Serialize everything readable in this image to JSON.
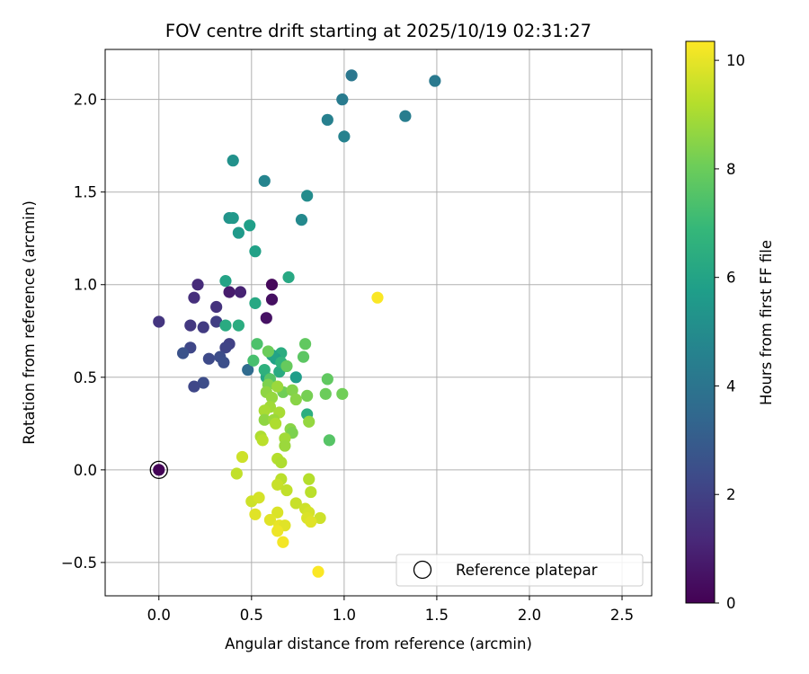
{
  "chart_data": {
    "type": "scatter",
    "title": "FOV centre drift starting at 2025/10/19 02:31:27",
    "xlabel": "Angular distance from reference (arcmin)",
    "ylabel": "Rotation from reference (arcmin)",
    "xlim": [
      -0.29,
      2.66
    ],
    "ylim": [
      -0.68,
      2.27
    ],
    "xticks": [
      0.0,
      0.5,
      1.0,
      1.5,
      2.0,
      2.5
    ],
    "xtick_labels": [
      "0.0",
      "0.5",
      "1.0",
      "1.5",
      "2.0",
      "2.5"
    ],
    "yticks": [
      -0.5,
      0.0,
      0.5,
      1.0,
      1.5,
      2.0
    ],
    "ytick_labels": [
      "−0.5",
      "0.0",
      "0.5",
      "1.0",
      "1.5",
      "2.0"
    ],
    "grid": true,
    "colorbar": {
      "label": "Hours from first FF file",
      "colormap": "viridis",
      "range": [
        0,
        10.35
      ],
      "ticks": [
        0,
        2,
        4,
        6,
        8,
        10
      ],
      "tick_labels": [
        "0",
        "2",
        "4",
        "6",
        "8",
        "10"
      ]
    },
    "legend": {
      "position": "bottom-right",
      "entries": [
        {
          "label": "Reference platepar",
          "marker": "open-circle"
        }
      ]
    },
    "reference_point": {
      "x": 0.0,
      "y": 0.0,
      "hours": 0.1
    },
    "points": [
      {
        "x": 0.0,
        "y": 0.0,
        "h": 0.1
      },
      {
        "x": 0.61,
        "y": 1.0,
        "h": 0.2
      },
      {
        "x": 0.61,
        "y": 0.92,
        "h": 0.4
      },
      {
        "x": 0.58,
        "y": 0.82,
        "h": 0.5
      },
      {
        "x": 0.38,
        "y": 0.96,
        "h": 0.8
      },
      {
        "x": 0.44,
        "y": 0.96,
        "h": 1.0
      },
      {
        "x": 0.21,
        "y": 1.0,
        "h": 1.3
      },
      {
        "x": 0.19,
        "y": 0.93,
        "h": 1.4
      },
      {
        "x": 0.31,
        "y": 0.88,
        "h": 1.5
      },
      {
        "x": 0.0,
        "y": 0.8,
        "h": 1.6
      },
      {
        "x": 0.17,
        "y": 0.78,
        "h": 1.7
      },
      {
        "x": 0.24,
        "y": 0.77,
        "h": 1.8
      },
      {
        "x": 0.31,
        "y": 0.8,
        "h": 1.9
      },
      {
        "x": 0.38,
        "y": 0.68,
        "h": 2.0
      },
      {
        "x": 0.36,
        "y": 0.66,
        "h": 2.1
      },
      {
        "x": 0.17,
        "y": 0.66,
        "h": 2.2
      },
      {
        "x": 0.13,
        "y": 0.63,
        "h": 2.6
      },
      {
        "x": 0.27,
        "y": 0.6,
        "h": 2.3
      },
      {
        "x": 0.33,
        "y": 0.61,
        "h": 2.4
      },
      {
        "x": 0.35,
        "y": 0.58,
        "h": 2.5
      },
      {
        "x": 0.24,
        "y": 0.47,
        "h": 2.4
      },
      {
        "x": 0.19,
        "y": 0.45,
        "h": 2.2
      },
      {
        "x": 0.48,
        "y": 0.54,
        "h": 3.6
      },
      {
        "x": 0.99,
        "y": 2.0,
        "h": 4.3
      },
      {
        "x": 1.04,
        "y": 2.13,
        "h": 4.1
      },
      {
        "x": 1.49,
        "y": 2.1,
        "h": 4.2
      },
      {
        "x": 1.33,
        "y": 1.91,
        "h": 4.4
      },
      {
        "x": 0.91,
        "y": 1.89,
        "h": 4.5
      },
      {
        "x": 1.0,
        "y": 1.8,
        "h": 4.6
      },
      {
        "x": 0.57,
        "y": 1.56,
        "h": 4.7
      },
      {
        "x": 0.4,
        "y": 1.67,
        "h": 5.2
      },
      {
        "x": 0.8,
        "y": 1.48,
        "h": 5.0
      },
      {
        "x": 0.77,
        "y": 1.35,
        "h": 4.9
      },
      {
        "x": 0.38,
        "y": 1.36,
        "h": 5.3
      },
      {
        "x": 0.4,
        "y": 1.36,
        "h": 5.5
      },
      {
        "x": 0.49,
        "y": 1.32,
        "h": 5.8
      },
      {
        "x": 0.43,
        "y": 1.28,
        "h": 5.6
      },
      {
        "x": 0.52,
        "y": 1.18,
        "h": 5.9
      },
      {
        "x": 0.7,
        "y": 1.04,
        "h": 6.2
      },
      {
        "x": 0.36,
        "y": 1.02,
        "h": 6.0
      },
      {
        "x": 0.52,
        "y": 0.9,
        "h": 6.2
      },
      {
        "x": 0.36,
        "y": 0.78,
        "h": 6.3
      },
      {
        "x": 0.43,
        "y": 0.78,
        "h": 6.4
      },
      {
        "x": 0.66,
        "y": 0.63,
        "h": 6.4
      },
      {
        "x": 0.63,
        "y": 0.6,
        "h": 5.9
      },
      {
        "x": 0.61,
        "y": 0.62,
        "h": 6.0
      },
      {
        "x": 0.74,
        "y": 0.5,
        "h": 5.7
      },
      {
        "x": 0.58,
        "y": 0.5,
        "h": 6.1
      },
      {
        "x": 0.57,
        "y": 0.54,
        "h": 6.6
      },
      {
        "x": 0.65,
        "y": 0.53,
        "h": 6.3
      },
      {
        "x": 0.66,
        "y": 0.58,
        "h": 6.7
      },
      {
        "x": 0.8,
        "y": 0.3,
        "h": 6.5
      },
      {
        "x": 0.53,
        "y": 0.68,
        "h": 7.4
      },
      {
        "x": 0.51,
        "y": 0.59,
        "h": 7.3
      },
      {
        "x": 0.59,
        "y": 0.64,
        "h": 8.0
      },
      {
        "x": 0.6,
        "y": 0.49,
        "h": 7.6
      },
      {
        "x": 0.79,
        "y": 0.68,
        "h": 7.8
      },
      {
        "x": 0.78,
        "y": 0.61,
        "h": 7.7
      },
      {
        "x": 0.69,
        "y": 0.56,
        "h": 7.9
      },
      {
        "x": 0.91,
        "y": 0.49,
        "h": 7.8
      },
      {
        "x": 0.9,
        "y": 0.41,
        "h": 8.0
      },
      {
        "x": 0.99,
        "y": 0.41,
        "h": 8.1
      },
      {
        "x": 0.8,
        "y": 0.4,
        "h": 8.2
      },
      {
        "x": 0.92,
        "y": 0.16,
        "h": 7.6
      },
      {
        "x": 0.59,
        "y": 0.46,
        "h": 8.3
      },
      {
        "x": 0.67,
        "y": 0.42,
        "h": 8.1
      },
      {
        "x": 0.72,
        "y": 0.43,
        "h": 8.4
      },
      {
        "x": 0.74,
        "y": 0.38,
        "h": 8.5
      },
      {
        "x": 0.58,
        "y": 0.42,
        "h": 8.6
      },
      {
        "x": 0.64,
        "y": 0.45,
        "h": 8.8
      },
      {
        "x": 0.61,
        "y": 0.39,
        "h": 8.7
      },
      {
        "x": 0.6,
        "y": 0.34,
        "h": 8.9
      },
      {
        "x": 0.57,
        "y": 0.32,
        "h": 9.0
      },
      {
        "x": 0.65,
        "y": 0.31,
        "h": 9.0
      },
      {
        "x": 0.57,
        "y": 0.27,
        "h": 8.6
      },
      {
        "x": 0.62,
        "y": 0.27,
        "h": 8.8
      },
      {
        "x": 0.63,
        "y": 0.25,
        "h": 9.1
      },
      {
        "x": 0.81,
        "y": 0.26,
        "h": 8.7
      },
      {
        "x": 0.71,
        "y": 0.22,
        "h": 8.5
      },
      {
        "x": 0.72,
        "y": 0.2,
        "h": 8.3
      },
      {
        "x": 0.68,
        "y": 0.17,
        "h": 8.9
      },
      {
        "x": 0.68,
        "y": 0.13,
        "h": 8.8
      },
      {
        "x": 0.55,
        "y": 0.18,
        "h": 9.1
      },
      {
        "x": 0.56,
        "y": 0.16,
        "h": 9.3
      },
      {
        "x": 0.64,
        "y": 0.06,
        "h": 9.2
      },
      {
        "x": 0.66,
        "y": 0.04,
        "h": 9.1
      },
      {
        "x": 0.45,
        "y": 0.07,
        "h": 9.6
      },
      {
        "x": 0.42,
        "y": -0.02,
        "h": 9.4
      },
      {
        "x": 0.66,
        "y": -0.05,
        "h": 9.3
      },
      {
        "x": 0.64,
        "y": -0.08,
        "h": 9.5
      },
      {
        "x": 0.69,
        "y": -0.11,
        "h": 9.4
      },
      {
        "x": 0.81,
        "y": -0.05,
        "h": 9.2
      },
      {
        "x": 0.82,
        "y": -0.12,
        "h": 9.3
      },
      {
        "x": 0.5,
        "y": -0.17,
        "h": 9.6
      },
      {
        "x": 0.54,
        "y": -0.15,
        "h": 9.7
      },
      {
        "x": 0.74,
        "y": -0.18,
        "h": 9.5
      },
      {
        "x": 0.79,
        "y": -0.21,
        "h": 9.6
      },
      {
        "x": 0.81,
        "y": -0.23,
        "h": 9.7
      },
      {
        "x": 0.8,
        "y": -0.26,
        "h": 9.8
      },
      {
        "x": 0.87,
        "y": -0.26,
        "h": 9.6
      },
      {
        "x": 0.82,
        "y": -0.28,
        "h": 9.9
      },
      {
        "x": 0.52,
        "y": -0.24,
        "h": 9.9
      },
      {
        "x": 0.64,
        "y": -0.23,
        "h": 9.8
      },
      {
        "x": 0.6,
        "y": -0.27,
        "h": 9.9
      },
      {
        "x": 0.65,
        "y": -0.3,
        "h": 10.0
      },
      {
        "x": 0.68,
        "y": -0.3,
        "h": 9.9
      },
      {
        "x": 0.64,
        "y": -0.33,
        "h": 10.1
      },
      {
        "x": 0.67,
        "y": -0.39,
        "h": 10.2
      },
      {
        "x": 0.86,
        "y": -0.55,
        "h": 10.3
      },
      {
        "x": 1.18,
        "y": 0.93,
        "h": 10.3
      }
    ]
  }
}
